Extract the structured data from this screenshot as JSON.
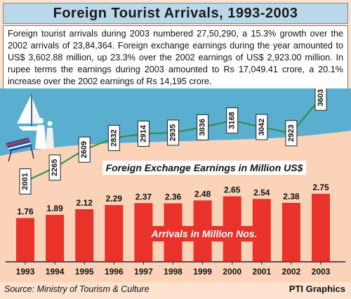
{
  "title": "Foreign Tourist Arrivals, 1993-2003",
  "summary": "Foreign tourist arrivals during 2003 numbered 27,50,290, a 15.3% growth over the 2002 arrivals of 23,84,364. Foreign exchange earnings during the year amounted to US$ 3,602.88 million, up 23.3% over the 2002 earnings of US$ 2,923.00 million. In rupee terms the earnings during 2003 amounted to Rs 17,049.41 crore, a 20.1% increase over the 2002 earnings of Rs 14,195 crore.",
  "source": "Source: Ministry of Tourism & Culture",
  "credit": "PTI Graphics",
  "colors": {
    "bar": "#e8322a",
    "sea": "#5aaed0",
    "sand": "#fbd3b8",
    "line": "#2e8b3e",
    "title_bg": "#b9d8ea"
  },
  "chart_data": [
    {
      "type": "line",
      "title": "Foreign Exchange Earnings in Million US$",
      "x": [
        "1993",
        "1994",
        "1995",
        "1996",
        "1997",
        "1998",
        "1999",
        "2000",
        "2001",
        "2002",
        "2003"
      ],
      "series": [
        {
          "values": [
            2001,
            2265,
            2609,
            2832,
            2914,
            2935,
            3036,
            3168,
            3042,
            2923,
            3603
          ]
        }
      ],
      "ylim": [
        1900,
        3700
      ],
      "legend": "none",
      "grid": false
    },
    {
      "type": "bar",
      "title": "Arrivals in Million Nos.",
      "categories": [
        "1993",
        "1994",
        "1995",
        "1996",
        "1997",
        "1998",
        "1999",
        "2000",
        "2001",
        "2002",
        "2003"
      ],
      "values": [
        1.76,
        1.89,
        2.12,
        2.29,
        2.37,
        2.36,
        2.48,
        2.65,
        2.54,
        2.38,
        2.75
      ],
      "ylim": [
        0,
        3.9
      ],
      "legend": "none",
      "grid": false
    }
  ]
}
